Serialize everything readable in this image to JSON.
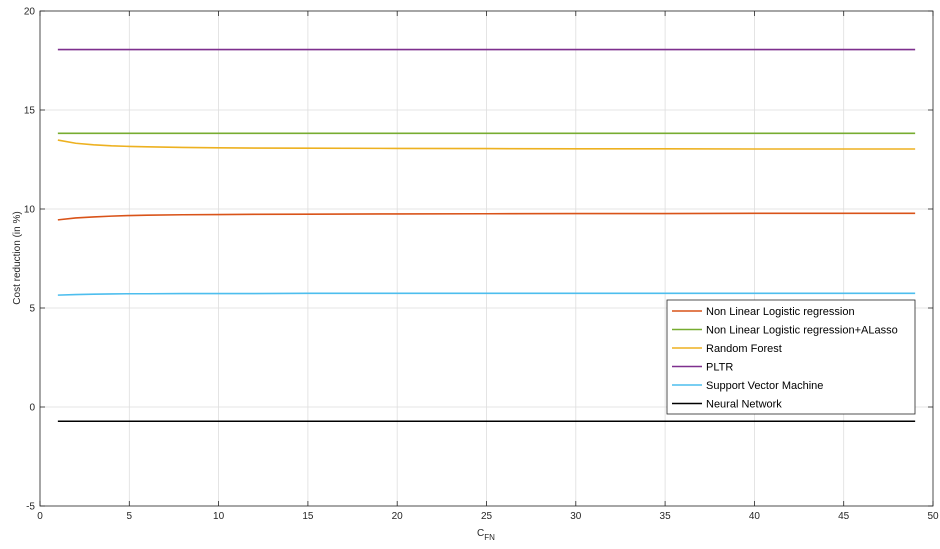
{
  "chart_data": {
    "type": "line",
    "title": "",
    "xlabel": "C",
    "xlabel_subscript": "FN",
    "ylabel": "Cost reduction (in %)",
    "xlim": [
      0,
      50
    ],
    "ylim": [
      -5,
      20
    ],
    "xticks": [
      0,
      5,
      10,
      15,
      20,
      25,
      30,
      35,
      40,
      45,
      50
    ],
    "yticks": [
      -5,
      0,
      5,
      10,
      15,
      20
    ],
    "grid": true,
    "legend_position": "right",
    "x": [
      1,
      2,
      3,
      4,
      5,
      6,
      8,
      10,
      12,
      15,
      20,
      25,
      30,
      35,
      40,
      45,
      49
    ],
    "series": [
      {
        "name": "Non Linear Logistic regression",
        "color": "#D95319",
        "values": [
          9.45,
          9.55,
          9.6,
          9.64,
          9.67,
          9.69,
          9.71,
          9.72,
          9.73,
          9.74,
          9.75,
          9.76,
          9.77,
          9.77,
          9.78,
          9.78,
          9.78
        ]
      },
      {
        "name": "Non Linear Logistic regression+ALasso",
        "color": "#77AC30",
        "values": [
          13.82,
          13.82,
          13.82,
          13.82,
          13.82,
          13.82,
          13.82,
          13.82,
          13.82,
          13.82,
          13.82,
          13.82,
          13.82,
          13.82,
          13.82,
          13.82,
          13.82
        ]
      },
      {
        "name": "Random Forest",
        "color": "#EDB120",
        "values": [
          13.48,
          13.32,
          13.24,
          13.19,
          13.16,
          13.14,
          13.11,
          13.09,
          13.08,
          13.07,
          13.06,
          13.05,
          13.04,
          13.04,
          13.03,
          13.03,
          13.03
        ]
      },
      {
        "name": "PLTR",
        "color": "#7E2F8E",
        "values": [
          18.05,
          18.05,
          18.05,
          18.05,
          18.05,
          18.05,
          18.05,
          18.05,
          18.05,
          18.05,
          18.05,
          18.05,
          18.05,
          18.05,
          18.05,
          18.05,
          18.05
        ]
      },
      {
        "name": "Support Vector Machine",
        "color": "#4DBEEE",
        "values": [
          5.65,
          5.68,
          5.7,
          5.71,
          5.72,
          5.72,
          5.73,
          5.73,
          5.73,
          5.74,
          5.74,
          5.74,
          5.74,
          5.74,
          5.74,
          5.74,
          5.74
        ]
      },
      {
        "name": "Neural Network",
        "color": "#000000",
        "values": [
          -0.72,
          -0.72,
          -0.72,
          -0.72,
          -0.72,
          -0.72,
          -0.72,
          -0.72,
          -0.72,
          -0.72,
          -0.72,
          -0.72,
          -0.72,
          -0.72,
          -0.72,
          -0.72,
          -0.72
        ]
      }
    ]
  }
}
